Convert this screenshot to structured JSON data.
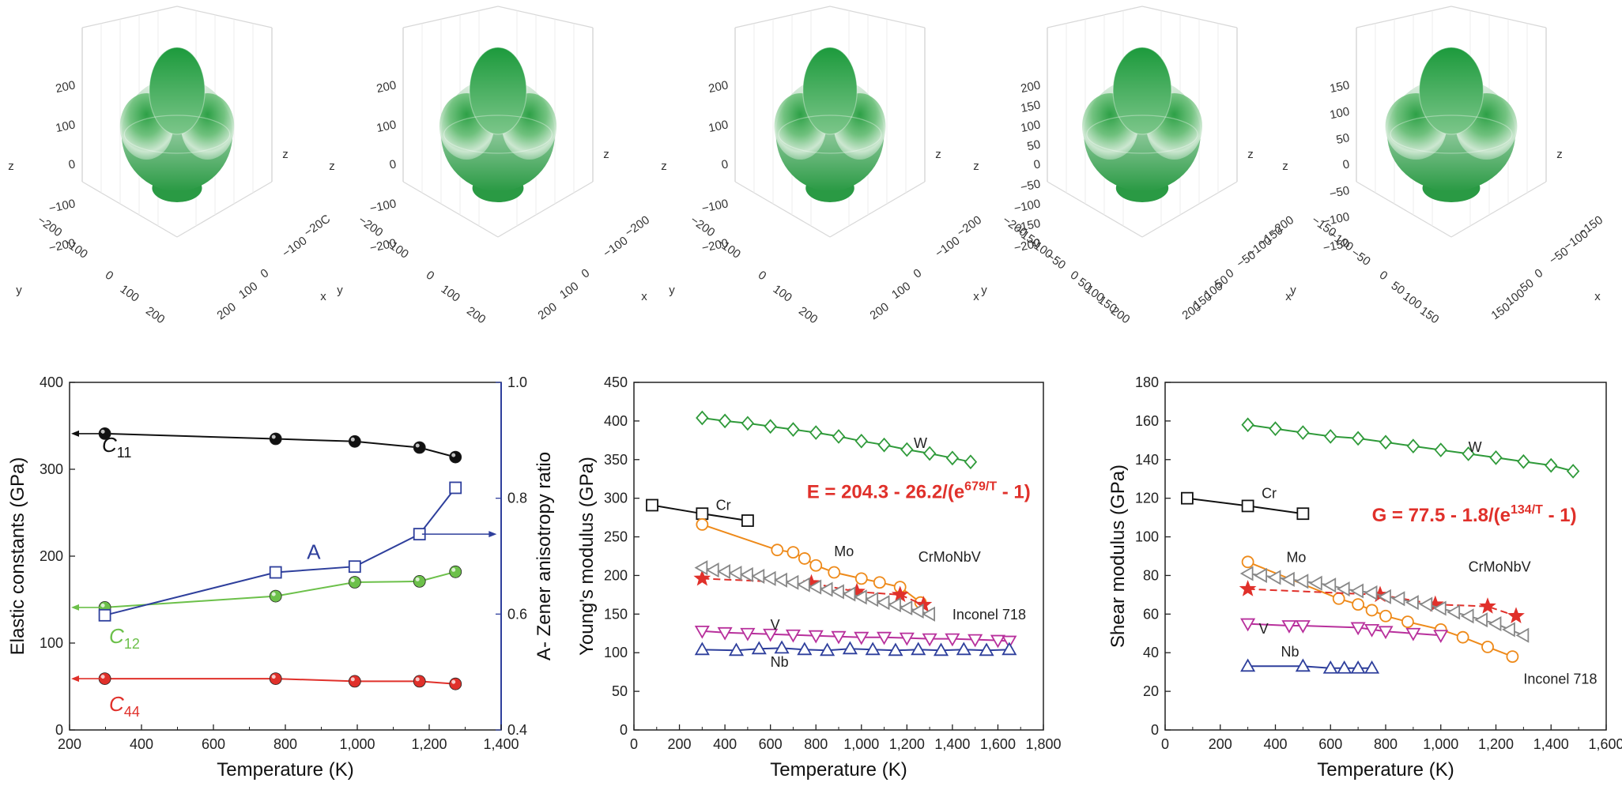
{
  "surfaces": [
    {
      "z_ticks": [
        "200",
        "100",
        "0",
        "−100",
        "−200"
      ],
      "y_ticks": [
        "−200",
        "−100",
        "0",
        "100",
        "200"
      ],
      "x_ticks": [
        "−20C",
        "−100",
        "0",
        "100",
        "200"
      ],
      "axis_labels": {
        "z_left": "z",
        "z_right": "z",
        "y": "y",
        "x": "x"
      },
      "shape_rx": 0.78,
      "shape_ry": 1.0
    },
    {
      "z_ticks": [
        "200",
        "100",
        "0",
        "−100",
        "−200"
      ],
      "y_ticks": [
        "−200",
        "−100",
        "0",
        "100",
        "200"
      ],
      "x_ticks": [
        "−200",
        "−100",
        "0",
        "100",
        "200"
      ],
      "axis_labels": {
        "z_left": "z",
        "z_right": "z",
        "y": "y",
        "x": "x"
      },
      "shape_rx": 0.8,
      "shape_ry": 1.0
    },
    {
      "z_ticks": [
        "200",
        "100",
        "0",
        "−100",
        "−200"
      ],
      "y_ticks": [
        "−200",
        "−100",
        "0",
        "100",
        "200"
      ],
      "x_ticks": [
        "−200",
        "−100",
        "0",
        "100",
        "200"
      ],
      "axis_labels": {
        "z_left": "z",
        "z_right": "z",
        "y": "y",
        "x": "x"
      },
      "shape_rx": 0.76,
      "shape_ry": 1.0
    },
    {
      "z_ticks": [
        "200",
        "150",
        "100",
        "50",
        "0",
        "−50",
        "−100",
        "−150",
        "−200"
      ],
      "y_ticks": [
        "−200",
        "−150",
        "−100",
        "−50",
        "0",
        "50",
        "100",
        "150",
        "200"
      ],
      "x_ticks": [
        "−200",
        "−150",
        "−100",
        "−50",
        "0",
        "50",
        "100",
        "150",
        "200"
      ],
      "axis_labels": {
        "z_left": "z",
        "z_right": "z",
        "y": "y",
        "x": "x"
      },
      "shape_rx": 0.82,
      "shape_ry": 1.0
    },
    {
      "z_ticks": [
        "150",
        "100",
        "50",
        "0",
        "−50",
        "−100",
        "−150"
      ],
      "y_ticks": [
        "−150",
        "−100",
        "−50",
        "0",
        "50",
        "100",
        "150"
      ],
      "x_ticks": [
        "−150",
        "−100",
        "−50",
        "0",
        "50",
        "100",
        "150"
      ],
      "axis_labels": {
        "z_left": "z",
        "z_right": "z",
        "y": "y",
        "x": "x"
      },
      "shape_rx": 0.9,
      "shape_ry": 1.0
    }
  ],
  "chart_data": [
    {
      "type": "line",
      "xlabel": "Temperature (K)",
      "ylabel": "Elastic constants (GPa)",
      "y2label": "A- Zener anisotropy ratio",
      "xlim": [
        200,
        1400
      ],
      "ylim": [
        0,
        400
      ],
      "y2lim": [
        0.4,
        1.0
      ],
      "x_ticks": [
        200,
        400,
        600,
        800,
        1000,
        1200,
        1400
      ],
      "x_tick_labels": [
        "200",
        "400",
        "600",
        "800",
        "1,000",
        "1,200",
        "1,400"
      ],
      "y_ticks": [
        0,
        100,
        200,
        300,
        400
      ],
      "y_tick_labels": [
        "0",
        "100",
        "200",
        "300",
        "400"
      ],
      "y2_ticks": [
        0.4,
        0.6,
        0.8,
        1.0
      ],
      "y2_tick_labels": [
        "0.4",
        "0.6",
        "0.8",
        "1.0"
      ],
      "series": [
        {
          "name": "C11",
          "label_main": "C",
          "label_sub": "11",
          "color": "#111111",
          "marker": "sphere",
          "axis": "left",
          "x": [
            298,
            773,
            993,
            1173,
            1273
          ],
          "y": [
            341,
            335,
            332,
            325,
            314
          ],
          "label_at": [
            290,
            320
          ],
          "arrow": "left"
        },
        {
          "name": "C12",
          "label_main": "C",
          "label_sub": "12",
          "color": "#6cc04a",
          "marker": "sphere",
          "axis": "left",
          "x": [
            298,
            773,
            993,
            1173,
            1273
          ],
          "y": [
            141,
            154,
            170,
            171,
            182
          ],
          "label_at": [
            310,
            100
          ],
          "arrow": "left"
        },
        {
          "name": "C44",
          "label_main": "C",
          "label_sub": "44",
          "color": "#e0302a",
          "marker": "sphere",
          "axis": "left",
          "x": [
            298,
            773,
            993,
            1173,
            1273
          ],
          "y": [
            59,
            59,
            56,
            56,
            53
          ],
          "label_at": [
            310,
            22
          ],
          "arrow": "left"
        },
        {
          "name": "A",
          "label_main": "A",
          "label_sub": "",
          "color": "#2e3f9c",
          "marker": "square",
          "axis": "right",
          "x": [
            298,
            773,
            993,
            1173,
            1273
          ],
          "y": [
            0.598,
            0.672,
            0.682,
            0.738,
            0.818
          ],
          "label_at": [
            860,
            0.695
          ],
          "arrow": "right"
        }
      ]
    },
    {
      "type": "line",
      "xlabel": "Temperature (K)",
      "ylabel": "Young's modulus (GPa)",
      "xlim": [
        0,
        1800
      ],
      "ylim": [
        0,
        450
      ],
      "x_ticks": [
        0,
        200,
        400,
        600,
        800,
        1000,
        1200,
        1400,
        1600,
        1800
      ],
      "x_tick_labels": [
        "0",
        "200",
        "400",
        "600",
        "800",
        "1,000",
        "1,200",
        "1,400",
        "1,600",
        "1,800"
      ],
      "y_ticks": [
        0,
        50,
        100,
        150,
        200,
        250,
        300,
        350,
        400,
        450
      ],
      "y_tick_labels": [
        "0",
        "50",
        "100",
        "150",
        "200",
        "250",
        "300",
        "350",
        "400",
        "450"
      ],
      "equation": {
        "main": "E = 204.3 - 26.2/(e",
        "sup": "679/T",
        "tail": " - 1)",
        "color": "#e0302a",
        "at": [
          760,
          300
        ]
      },
      "series": [
        {
          "name": "W",
          "color": "#2f9a3a",
          "marker": "diamond",
          "label_at": [
            1230,
            365
          ],
          "x": [
            300,
            400,
            500,
            600,
            700,
            800,
            900,
            1000,
            1100,
            1200,
            1300,
            1400,
            1480
          ],
          "y": [
            404,
            400,
            397,
            393,
            389,
            385,
            380,
            374,
            369,
            363,
            358,
            352,
            347
          ]
        },
        {
          "name": "Cr",
          "color": "#111111",
          "marker": "square",
          "label_at": [
            360,
            285
          ],
          "x": [
            80,
            300,
            500
          ],
          "y": [
            291,
            280,
            271
          ]
        },
        {
          "name": "Mo",
          "color": "#ee8a1a",
          "marker": "circle",
          "label_at": [
            880,
            225
          ],
          "x": [
            300,
            630,
            700,
            750,
            800,
            880,
            1000,
            1080,
            1170,
            1260
          ],
          "y": [
            266,
            233,
            230,
            222,
            213,
            204,
            196,
            191,
            185,
            165
          ]
        },
        {
          "name": "CrMoNbV",
          "color": "#e0302a",
          "marker": "star",
          "dashed": true,
          "label_at": [
            1250,
            218
          ],
          "x": [
            300,
            780,
            980,
            1170,
            1273
          ],
          "y": [
            196,
            190,
            179,
            175,
            162
          ]
        },
        {
          "name": "Inconel 718",
          "color": "#888888",
          "marker": "tri-left",
          "label_at": [
            1400,
            143
          ],
          "x": [
            300,
            350,
            400,
            450,
            500,
            550,
            600,
            650,
            700,
            750,
            800,
            850,
            900,
            950,
            1000,
            1050,
            1100,
            1150,
            1200,
            1250,
            1300
          ],
          "y": [
            210,
            207,
            205,
            203,
            201,
            199,
            196,
            194,
            191,
            188,
            185,
            182,
            179,
            176,
            172,
            169,
            165,
            162,
            158,
            154,
            150
          ]
        },
        {
          "name": "V",
          "color": "#b8309c",
          "marker": "tri-down",
          "label_at": [
            600,
            130
          ],
          "x": [
            300,
            400,
            500,
            600,
            700,
            800,
            900,
            1000,
            1100,
            1200,
            1300,
            1400,
            1500,
            1600,
            1650
          ],
          "y": [
            128,
            126,
            125,
            124,
            123,
            122,
            121,
            120,
            120,
            119,
            118,
            118,
            117,
            116,
            115
          ]
        },
        {
          "name": "Nb",
          "color": "#2e3f9c",
          "marker": "tri-up",
          "label_at": [
            600,
            82
          ],
          "x": [
            300,
            450,
            550,
            650,
            750,
            850,
            950,
            1050,
            1150,
            1250,
            1350,
            1450,
            1550,
            1650
          ],
          "y": [
            104,
            103,
            105,
            106,
            104,
            103,
            105,
            104,
            103,
            104,
            103,
            104,
            103,
            104
          ]
        }
      ]
    },
    {
      "type": "line",
      "xlabel": "Temperature (K)",
      "ylabel": "Shear modulus (GPa)",
      "xlim": [
        0,
        1600
      ],
      "ylim": [
        0,
        180
      ],
      "x_ticks": [
        0,
        200,
        400,
        600,
        800,
        1000,
        1200,
        1400,
        1600
      ],
      "x_tick_labels": [
        "0",
        "200",
        "400",
        "600",
        "800",
        "1,000",
        "1,200",
        "1,400",
        "1,600"
      ],
      "y_ticks": [
        0,
        20,
        40,
        60,
        80,
        100,
        120,
        140,
        160,
        180
      ],
      "y_tick_labels": [
        "0",
        "20",
        "40",
        "60",
        "80",
        "100",
        "120",
        "140",
        "160",
        "180"
      ],
      "equation": {
        "main": "G = 77.5 - 1.8/(e",
        "sup": "134/T",
        "tail": " - 1)",
        "color": "#e0302a",
        "at": [
          750,
          108
        ]
      },
      "series": [
        {
          "name": "W",
          "color": "#2f9a3a",
          "marker": "diamond",
          "label_at": [
            1100,
            144
          ],
          "x": [
            300,
            400,
            500,
            600,
            700,
            800,
            900,
            1000,
            1100,
            1200,
            1300,
            1400,
            1480
          ],
          "y": [
            158,
            156,
            154,
            152,
            151,
            149,
            147,
            145,
            143,
            141,
            139,
            137,
            134
          ]
        },
        {
          "name": "Cr",
          "color": "#111111",
          "marker": "square",
          "label_at": [
            350,
            120
          ],
          "x": [
            80,
            300,
            500
          ],
          "y": [
            120,
            116,
            112
          ]
        },
        {
          "name": "Mo",
          "color": "#ee8a1a",
          "marker": "circle",
          "label_at": [
            440,
            87
          ],
          "x": [
            300,
            630,
            700,
            750,
            800,
            880,
            1000,
            1080,
            1170,
            1260
          ],
          "y": [
            87,
            68,
            65,
            62,
            59,
            56,
            52,
            48,
            43,
            38
          ]
        },
        {
          "name": "CrMoNbV",
          "color": "#e0302a",
          "marker": "star",
          "dashed": true,
          "label_at": [
            1100,
            82
          ],
          "x": [
            300,
            780,
            980,
            1170,
            1273
          ],
          "y": [
            73,
            70,
            65,
            64,
            59
          ]
        },
        {
          "name": "Inconel 718",
          "color": "#888888",
          "marker": "tri-left",
          "label_at": [
            1300,
            24
          ],
          "x": [
            300,
            350,
            400,
            450,
            500,
            550,
            600,
            650,
            700,
            750,
            800,
            850,
            900,
            950,
            1000,
            1050,
            1100,
            1150,
            1200,
            1250,
            1300
          ],
          "y": [
            81,
            80,
            79,
            78,
            77,
            76,
            75,
            73,
            72,
            71,
            69,
            68,
            66,
            65,
            63,
            61,
            59,
            57,
            55,
            52,
            49
          ]
        },
        {
          "name": "V",
          "color": "#b8309c",
          "marker": "tri-down",
          "label_at": [
            340,
            50
          ],
          "x": [
            300,
            450,
            500,
            700,
            750,
            800,
            900,
            1000
          ],
          "y": [
            55,
            54,
            54,
            53,
            52,
            51,
            50,
            49
          ]
        },
        {
          "name": "Nb",
          "color": "#2e3f9c",
          "marker": "tri-up",
          "label_at": [
            420,
            38
          ],
          "x": [
            300,
            500,
            600,
            650,
            700,
            750
          ],
          "y": [
            33,
            33,
            32,
            32,
            32,
            32
          ]
        }
      ]
    }
  ]
}
